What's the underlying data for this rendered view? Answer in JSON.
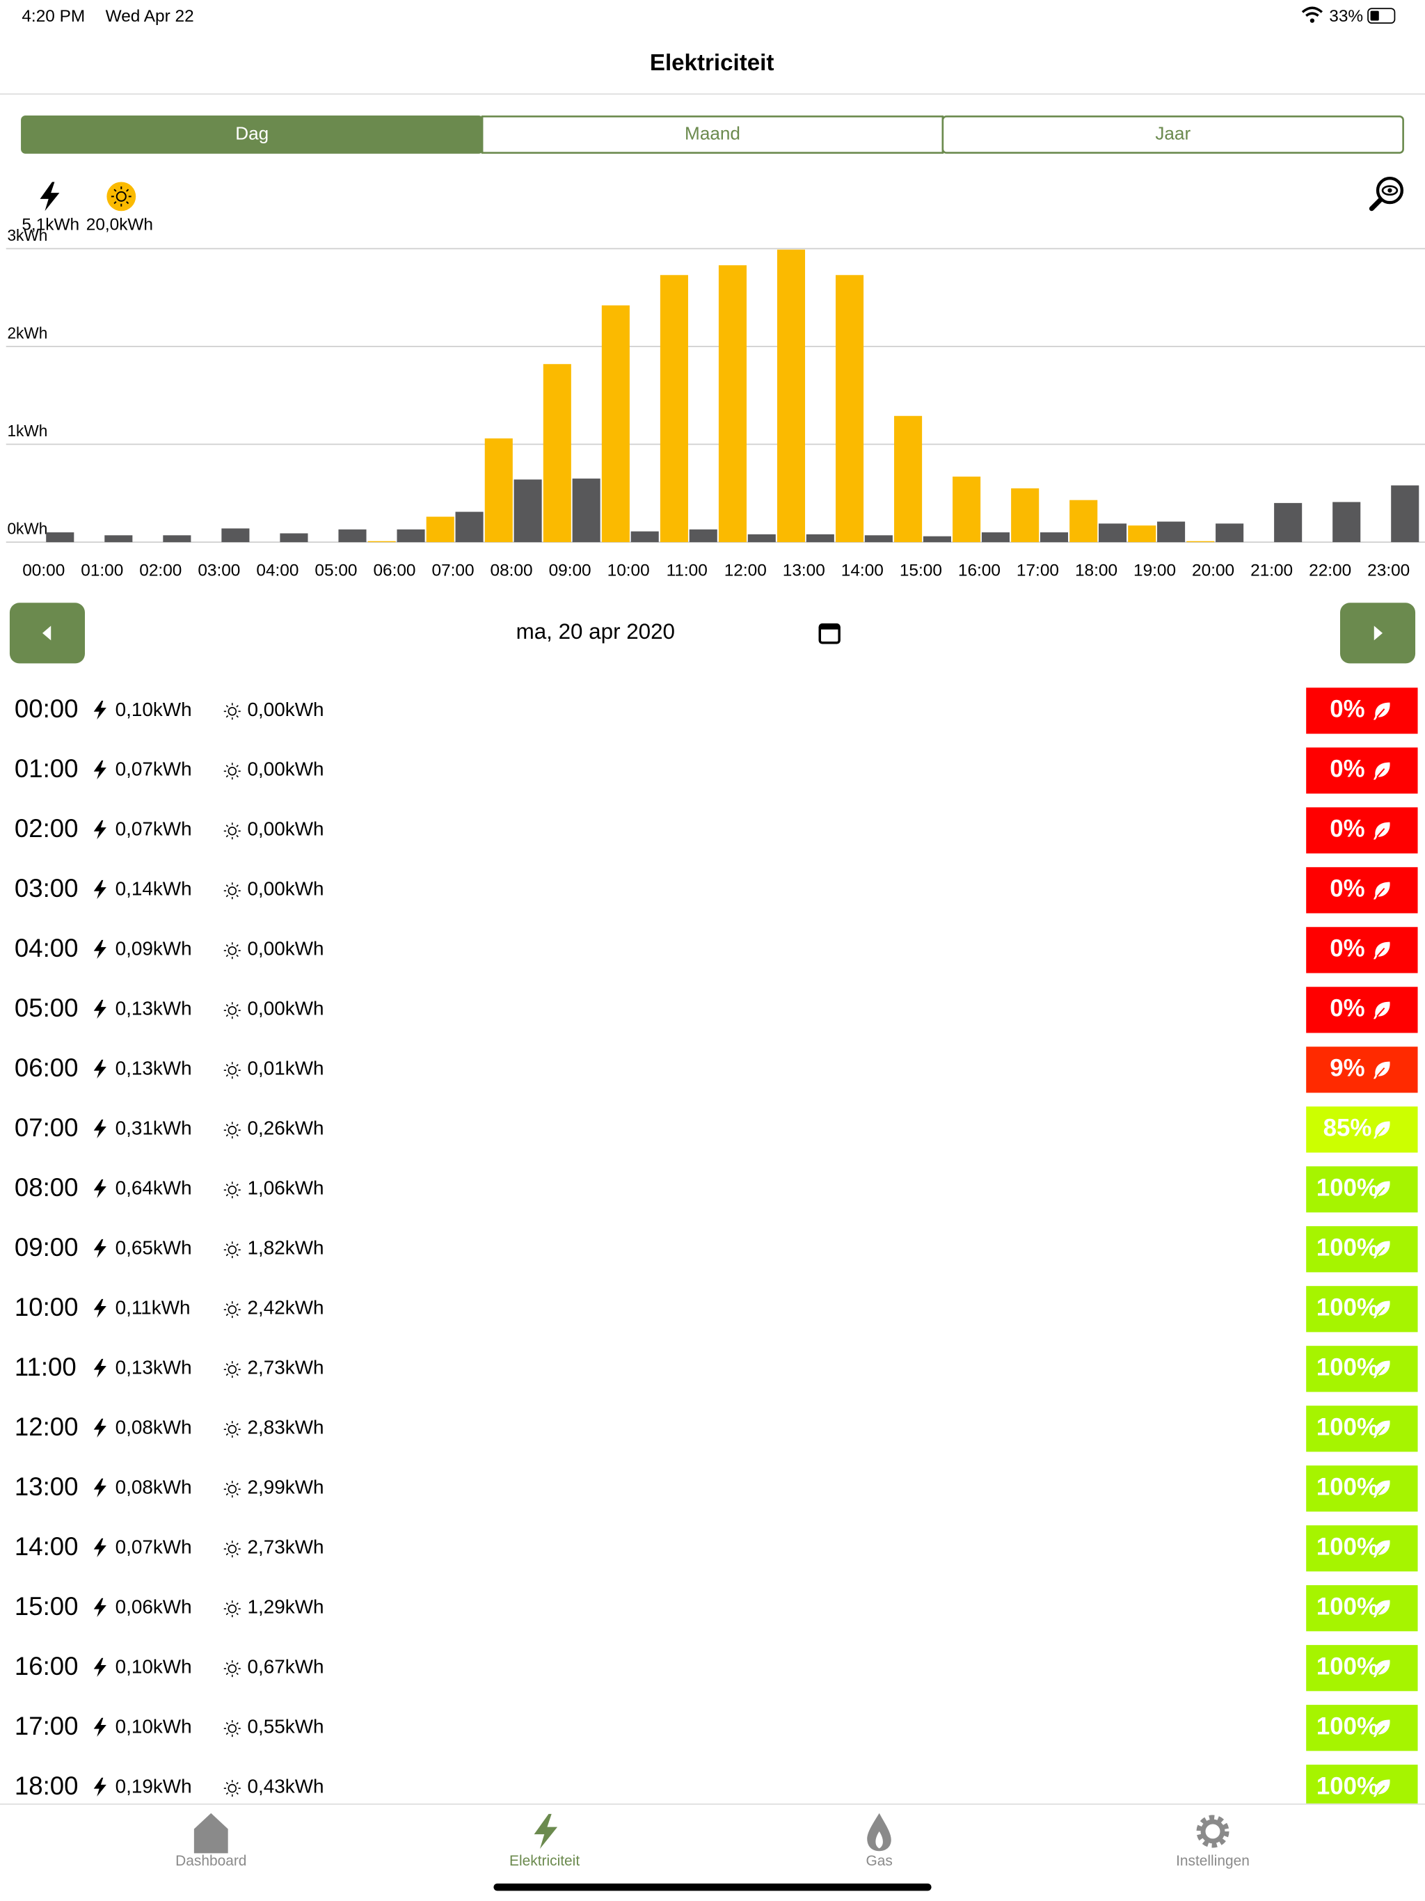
{
  "status_bar": {
    "time": "4:20 PM",
    "date": "Wed Apr 22",
    "battery": "33%"
  },
  "header": {
    "title": "Elektriciteit"
  },
  "tabs": {
    "items": [
      "Dag",
      "Maand",
      "Jaar"
    ],
    "active": 0
  },
  "summary": {
    "usage": "5,1kWh",
    "solar": "20,0kWh"
  },
  "chart": {
    "type": "bar",
    "categories": [
      "00:00",
      "01:00",
      "02:00",
      "03:00",
      "04:00",
      "05:00",
      "06:00",
      "07:00",
      "08:00",
      "09:00",
      "10:00",
      "11:00",
      "12:00",
      "13:00",
      "14:00",
      "15:00",
      "16:00",
      "17:00",
      "18:00",
      "19:00",
      "20:00",
      "21:00",
      "22:00",
      "23:00"
    ],
    "series": [
      {
        "color": "#fbba00",
        "values": [
          0,
          0,
          0,
          0,
          0,
          0,
          0.01,
          0.26,
          1.06,
          1.82,
          2.42,
          2.73,
          2.83,
          2.99,
          2.73,
          1.29,
          0.67,
          0.55,
          0.43,
          0.17,
          0.01,
          0,
          0,
          0
        ]
      },
      {
        "color": "#58585a",
        "values": [
          0.1,
          0.07,
          0.07,
          0.14,
          0.09,
          0.13,
          0.13,
          0.31,
          0.64,
          0.65,
          0.11,
          0.13,
          0.08,
          0.08,
          0.07,
          0.06,
          0.1,
          0.1,
          0.19,
          0.21,
          0.19,
          0.4,
          0.41,
          0.58
        ]
      }
    ],
    "ylim": [
      0,
      3
    ],
    "yticks": [
      {
        "value": 0,
        "label": "0kWh"
      },
      {
        "value": 1,
        "label": "1kWh"
      },
      {
        "value": 2,
        "label": "2kWh"
      },
      {
        "value": 3,
        "label": "3kWh"
      }
    ],
    "grid": true
  },
  "date_nav": {
    "date": "ma, 20 apr 2020"
  },
  "rows": [
    {
      "time": "00:00",
      "usage": "0,10kWh",
      "solar": "0,00kWh",
      "green": "0%",
      "color": "#ff0000"
    },
    {
      "time": "01:00",
      "usage": "0,07kWh",
      "solar": "0,00kWh",
      "green": "0%",
      "color": "#ff0000"
    },
    {
      "time": "02:00",
      "usage": "0,07kWh",
      "solar": "0,00kWh",
      "green": "0%",
      "color": "#ff0000"
    },
    {
      "time": "03:00",
      "usage": "0,14kWh",
      "solar": "0,00kWh",
      "green": "0%",
      "color": "#ff0000"
    },
    {
      "time": "04:00",
      "usage": "0,09kWh",
      "solar": "0,00kWh",
      "green": "0%",
      "color": "#ff0000"
    },
    {
      "time": "05:00",
      "usage": "0,13kWh",
      "solar": "0,00kWh",
      "green": "0%",
      "color": "#ff0000"
    },
    {
      "time": "06:00",
      "usage": "0,13kWh",
      "solar": "0,01kWh",
      "green": "9%",
      "color": "#ff2a00"
    },
    {
      "time": "07:00",
      "usage": "0,31kWh",
      "solar": "0,26kWh",
      "green": "85%",
      "color": "#ccff00"
    },
    {
      "time": "08:00",
      "usage": "0,64kWh",
      "solar": "1,06kWh",
      "green": "100%",
      "color": "#a6f400"
    },
    {
      "time": "09:00",
      "usage": "0,65kWh",
      "solar": "1,82kWh",
      "green": "100%",
      "color": "#a6f400"
    },
    {
      "time": "10:00",
      "usage": "0,11kWh",
      "solar": "2,42kWh",
      "green": "100%",
      "color": "#a6f400"
    },
    {
      "time": "11:00",
      "usage": "0,13kWh",
      "solar": "2,73kWh",
      "green": "100%",
      "color": "#a6f400"
    },
    {
      "time": "12:00",
      "usage": "0,08kWh",
      "solar": "2,83kWh",
      "green": "100%",
      "color": "#a6f400"
    },
    {
      "time": "13:00",
      "usage": "0,08kWh",
      "solar": "2,99kWh",
      "green": "100%",
      "color": "#a6f400"
    },
    {
      "time": "14:00",
      "usage": "0,07kWh",
      "solar": "2,73kWh",
      "green": "100%",
      "color": "#a6f400"
    },
    {
      "time": "15:00",
      "usage": "0,06kWh",
      "solar": "1,29kWh",
      "green": "100%",
      "color": "#a6f400"
    },
    {
      "time": "16:00",
      "usage": "0,10kWh",
      "solar": "0,67kWh",
      "green": "100%",
      "color": "#a6f400"
    },
    {
      "time": "17:00",
      "usage": "0,10kWh",
      "solar": "0,55kWh",
      "green": "100%",
      "color": "#a6f400"
    },
    {
      "time": "18:00",
      "usage": "0,19kWh",
      "solar": "0,43kWh",
      "green": "100%",
      "color": "#a6f400"
    }
  ],
  "tab_bar": {
    "items": [
      "Dashboard",
      "Elektriciteit",
      "Gas",
      "Instellingen"
    ],
    "active": 1
  }
}
